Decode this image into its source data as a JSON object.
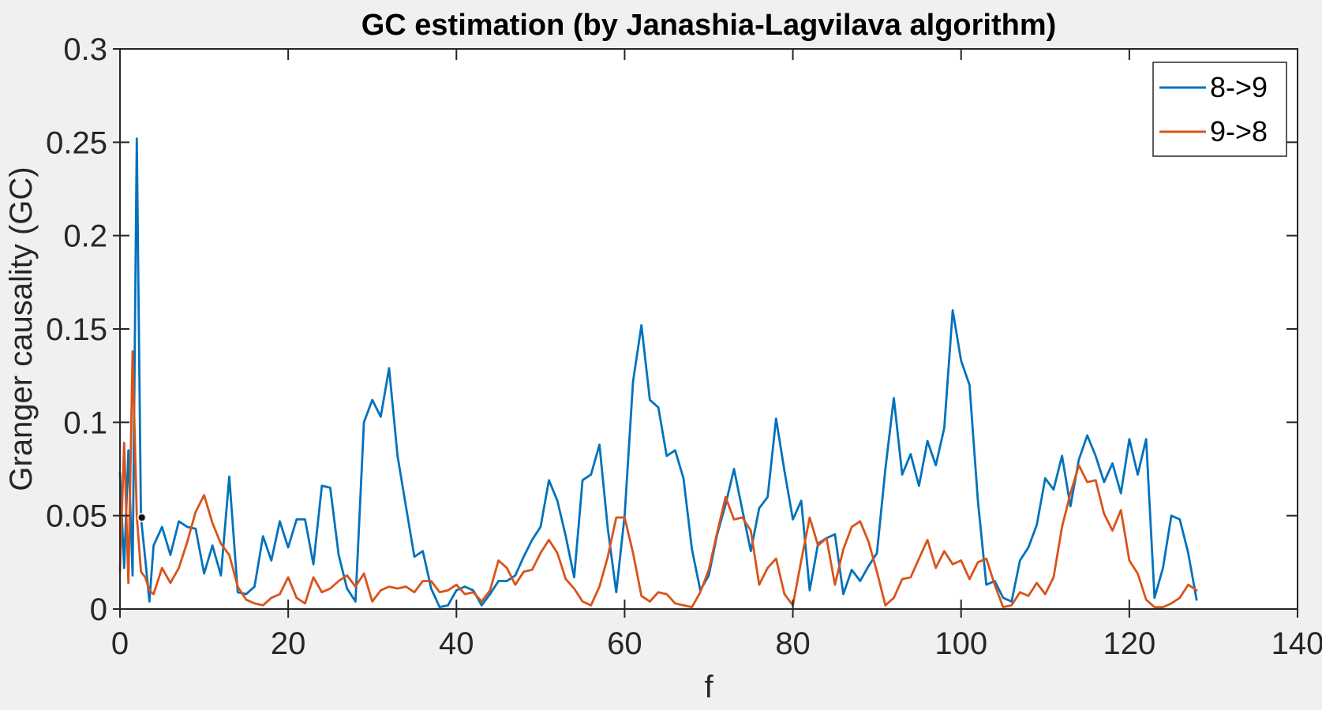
{
  "window": {
    "background_color": "#F0F0F0",
    "plot_background_color": "#FFFFFF",
    "axis_color": "#262626"
  },
  "chart_data": {
    "type": "line",
    "title": "GC estimation (by Janashia-Lagvilava algorithm)",
    "xlabel": "f",
    "ylabel": "Granger causality (GC)",
    "xlim": [
      0,
      140
    ],
    "ylim": [
      0,
      0.3
    ],
    "grid": false,
    "legend_position": "top-right",
    "x_ticks": [
      0,
      20,
      40,
      60,
      80,
      100,
      120,
      140
    ],
    "x_tick_labels": [
      "0",
      "20",
      "40",
      "60",
      "80",
      "100",
      "120",
      "140"
    ],
    "y_ticks": [
      0,
      0.05,
      0.1,
      0.15,
      0.2,
      0.25,
      0.3
    ],
    "y_tick_labels": [
      "0",
      "0.05",
      "0.1",
      "0.15",
      "0.2",
      "0.25",
      "0.3"
    ],
    "x": [
      0,
      0.5,
      1,
      1.5,
      2,
      2.5,
      3,
      3.5,
      4,
      5,
      6,
      7,
      8,
      9,
      10,
      11,
      12,
      13,
      14,
      15,
      16,
      17,
      18,
      19,
      20,
      21,
      22,
      23,
      24,
      25,
      26,
      27,
      28,
      29,
      30,
      31,
      32,
      33,
      34,
      35,
      36,
      37,
      38,
      39,
      40,
      41,
      42,
      43,
      44,
      45,
      46,
      47,
      48,
      49,
      50,
      51,
      52,
      53,
      54,
      55,
      56,
      57,
      58,
      59,
      60,
      61,
      62,
      63,
      64,
      65,
      66,
      67,
      68,
      69,
      70,
      71,
      72,
      73,
      74,
      75,
      76,
      77,
      78,
      79,
      80,
      81,
      82,
      83,
      84,
      85,
      86,
      87,
      88,
      89,
      90,
      91,
      92,
      93,
      94,
      95,
      96,
      97,
      98,
      99,
      100,
      101,
      102,
      103,
      104,
      105,
      106,
      107,
      108,
      109,
      110,
      111,
      112,
      113,
      114,
      115,
      116,
      117,
      118,
      119,
      120,
      121,
      122,
      123,
      124,
      125,
      126,
      127,
      128
    ],
    "series": [
      {
        "name": "8->9",
        "color": "#0072BD",
        "values": [
          0.073,
          0.022,
          0.085,
          0.018,
          0.252,
          0.049,
          0.027,
          0.004,
          0.034,
          0.044,
          0.029,
          0.047,
          0.044,
          0.043,
          0.019,
          0.034,
          0.018,
          0.071,
          0.009,
          0.008,
          0.012,
          0.039,
          0.026,
          0.047,
          0.033,
          0.048,
          0.048,
          0.024,
          0.066,
          0.065,
          0.029,
          0.011,
          0.004,
          0.1,
          0.112,
          0.103,
          0.129,
          0.082,
          0.055,
          0.028,
          0.031,
          0.011,
          0.001,
          0.002,
          0.01,
          0.012,
          0.01,
          0.002,
          0.008,
          0.015,
          0.015,
          0.018,
          0.028,
          0.037,
          0.044,
          0.069,
          0.058,
          0.039,
          0.017,
          0.069,
          0.072,
          0.088,
          0.043,
          0.009,
          0.05,
          0.122,
          0.152,
          0.112,
          0.108,
          0.082,
          0.085,
          0.07,
          0.032,
          0.01,
          0.018,
          0.04,
          0.056,
          0.075,
          0.053,
          0.031,
          0.054,
          0.06,
          0.102,
          0.074,
          0.048,
          0.058,
          0.01,
          0.035,
          0.038,
          0.04,
          0.008,
          0.021,
          0.015,
          0.023,
          0.03,
          0.075,
          0.113,
          0.072,
          0.083,
          0.066,
          0.09,
          0.077,
          0.097,
          0.16,
          0.133,
          0.12,
          0.058,
          0.013,
          0.015,
          0.006,
          0.004,
          0.026,
          0.033,
          0.045,
          0.07,
          0.064,
          0.082,
          0.055,
          0.08,
          0.093,
          0.082,
          0.068,
          0.078,
          0.062,
          0.091,
          0.072,
          0.091,
          0.006,
          0.022,
          0.05,
          0.048,
          0.03,
          0.005
        ]
      },
      {
        "name": "9->8",
        "color": "#D95319",
        "values": [
          0.02,
          0.089,
          0.014,
          0.138,
          0.05,
          0.02,
          0.017,
          0.01,
          0.008,
          0.022,
          0.014,
          0.022,
          0.036,
          0.052,
          0.061,
          0.046,
          0.035,
          0.029,
          0.012,
          0.005,
          0.003,
          0.002,
          0.006,
          0.008,
          0.017,
          0.006,
          0.003,
          0.017,
          0.009,
          0.011,
          0.015,
          0.018,
          0.012,
          0.019,
          0.004,
          0.01,
          0.012,
          0.011,
          0.012,
          0.009,
          0.015,
          0.015,
          0.009,
          0.01,
          0.013,
          0.008,
          0.009,
          0.004,
          0.01,
          0.026,
          0.022,
          0.013,
          0.02,
          0.021,
          0.03,
          0.037,
          0.03,
          0.016,
          0.011,
          0.004,
          0.002,
          0.012,
          0.028,
          0.049,
          0.049,
          0.03,
          0.007,
          0.004,
          0.009,
          0.008,
          0.003,
          0.002,
          0.001,
          0.009,
          0.021,
          0.041,
          0.06,
          0.048,
          0.049,
          0.042,
          0.013,
          0.022,
          0.027,
          0.008,
          0.002,
          0.026,
          0.049,
          0.034,
          0.038,
          0.013,
          0.032,
          0.044,
          0.047,
          0.036,
          0.02,
          0.002,
          0.006,
          0.016,
          0.017,
          0.027,
          0.037,
          0.022,
          0.031,
          0.024,
          0.026,
          0.016,
          0.025,
          0.027,
          0.013,
          0.001,
          0.002,
          0.009,
          0.007,
          0.014,
          0.008,
          0.017,
          0.044,
          0.062,
          0.077,
          0.068,
          0.069,
          0.051,
          0.042,
          0.053,
          0.026,
          0.019,
          0.005,
          0.001,
          0.001,
          0.003,
          0.006,
          0.013,
          0.01
        ]
      }
    ],
    "marker_point": {
      "x": 2.6,
      "y": 0.049,
      "color": "#111111"
    }
  },
  "legend": {
    "entries": [
      {
        "label": "8->9",
        "color": "#0072BD"
      },
      {
        "label": "9->8",
        "color": "#D95319"
      }
    ]
  }
}
